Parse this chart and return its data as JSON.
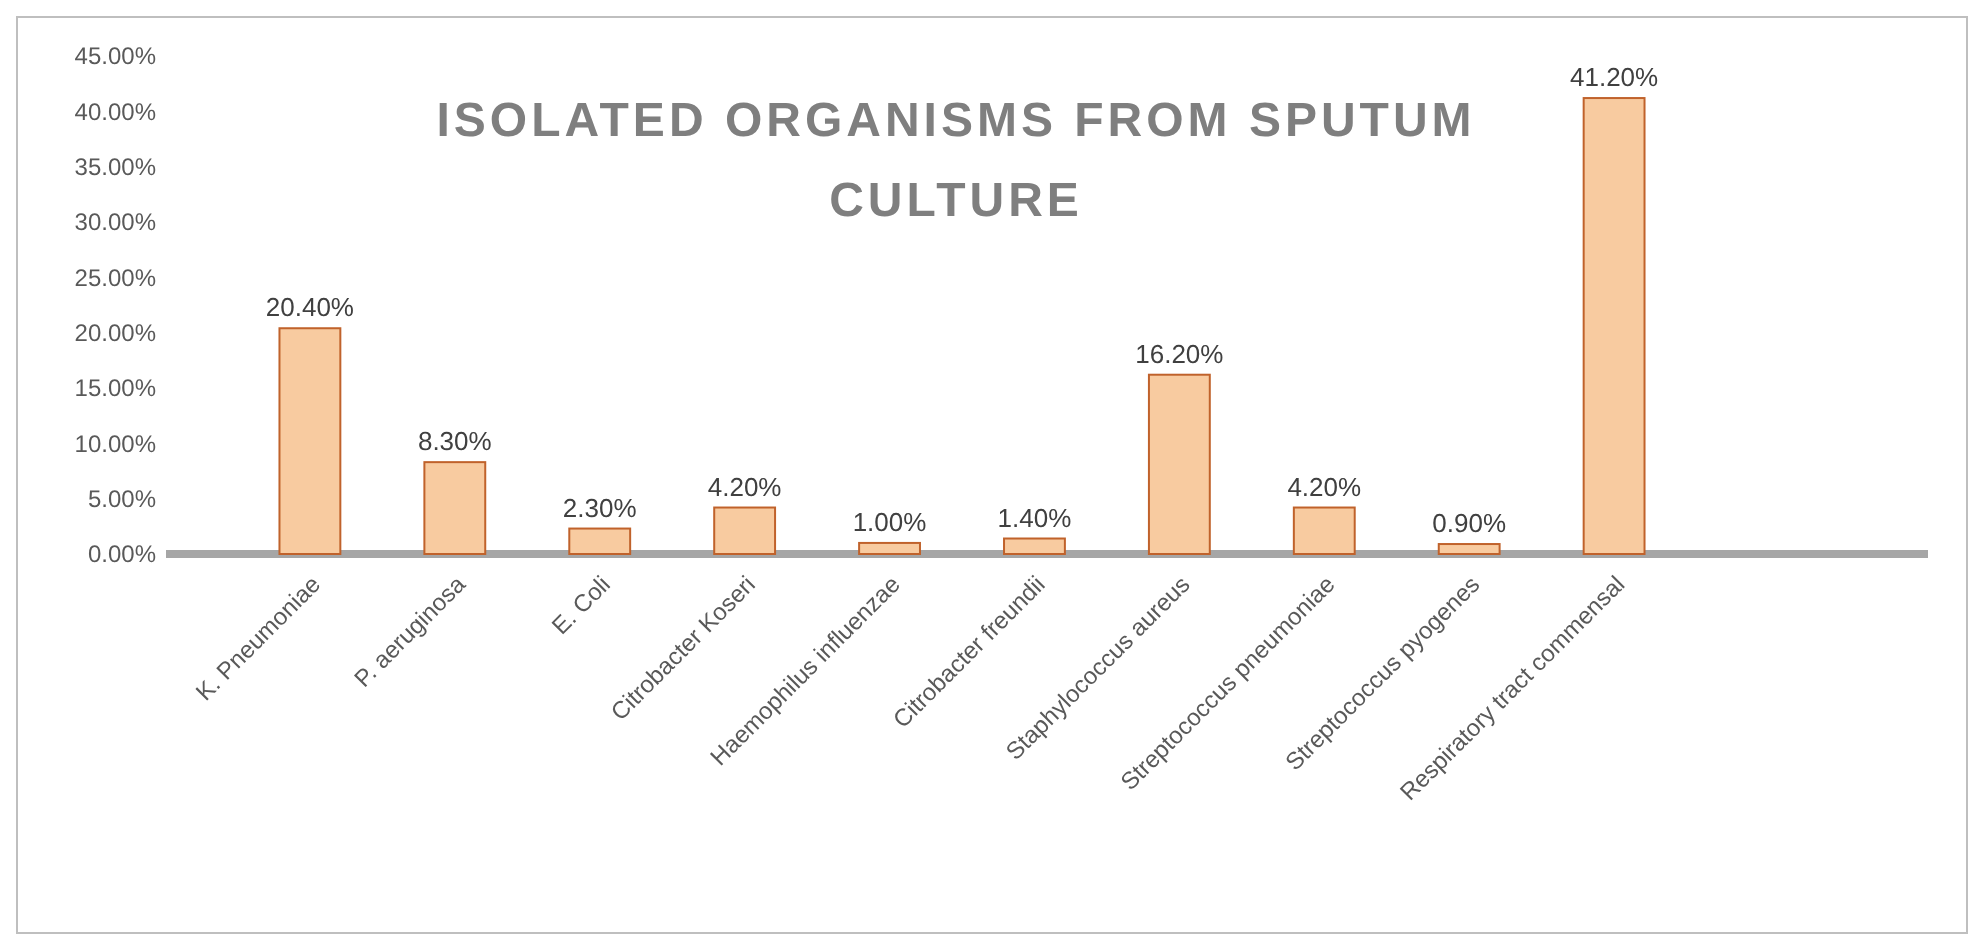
{
  "chart_data": {
    "type": "bar",
    "title": "ISOLATED ORGANISMS FROM SPUTUM CULTURE",
    "categories": [
      "K. Pneumoniae",
      "P. aeruginosa",
      "E. Coli",
      "Citrobacter Koseri",
      "Haemophilus influenzae",
      "Citrobacter freundii",
      "Staphylococcus aureus",
      "Streptococcus pneumoniae",
      "Streptococcus pyogenes",
      "Respiratory tract commensal"
    ],
    "values": [
      20.4,
      8.3,
      2.3,
      4.2,
      1.0,
      1.4,
      16.2,
      4.2,
      0.9,
      41.2
    ],
    "value_labels": [
      "20.40%",
      "8.30%",
      "2.30%",
      "4.20%",
      "1.00%",
      "1.40%",
      "16.20%",
      "4.20%",
      "0.90%",
      "41.20%"
    ],
    "color": "#f8cba0",
    "ylim": [
      0,
      45
    ],
    "yticks": [
      {
        "value": 0,
        "label": "0.00%"
      },
      {
        "value": 5,
        "label": "5.00%"
      },
      {
        "value": 10,
        "label": "10.00%"
      },
      {
        "value": 15,
        "label": "15.00%"
      },
      {
        "value": 20,
        "label": "20.00%"
      },
      {
        "value": 25,
        "label": "25.00%"
      },
      {
        "value": 30,
        "label": "30.00%"
      },
      {
        "value": 35,
        "label": "35.00%"
      },
      {
        "value": 40,
        "label": "40.00%"
      },
      {
        "value": 45,
        "label": "45.00%"
      }
    ]
  }
}
